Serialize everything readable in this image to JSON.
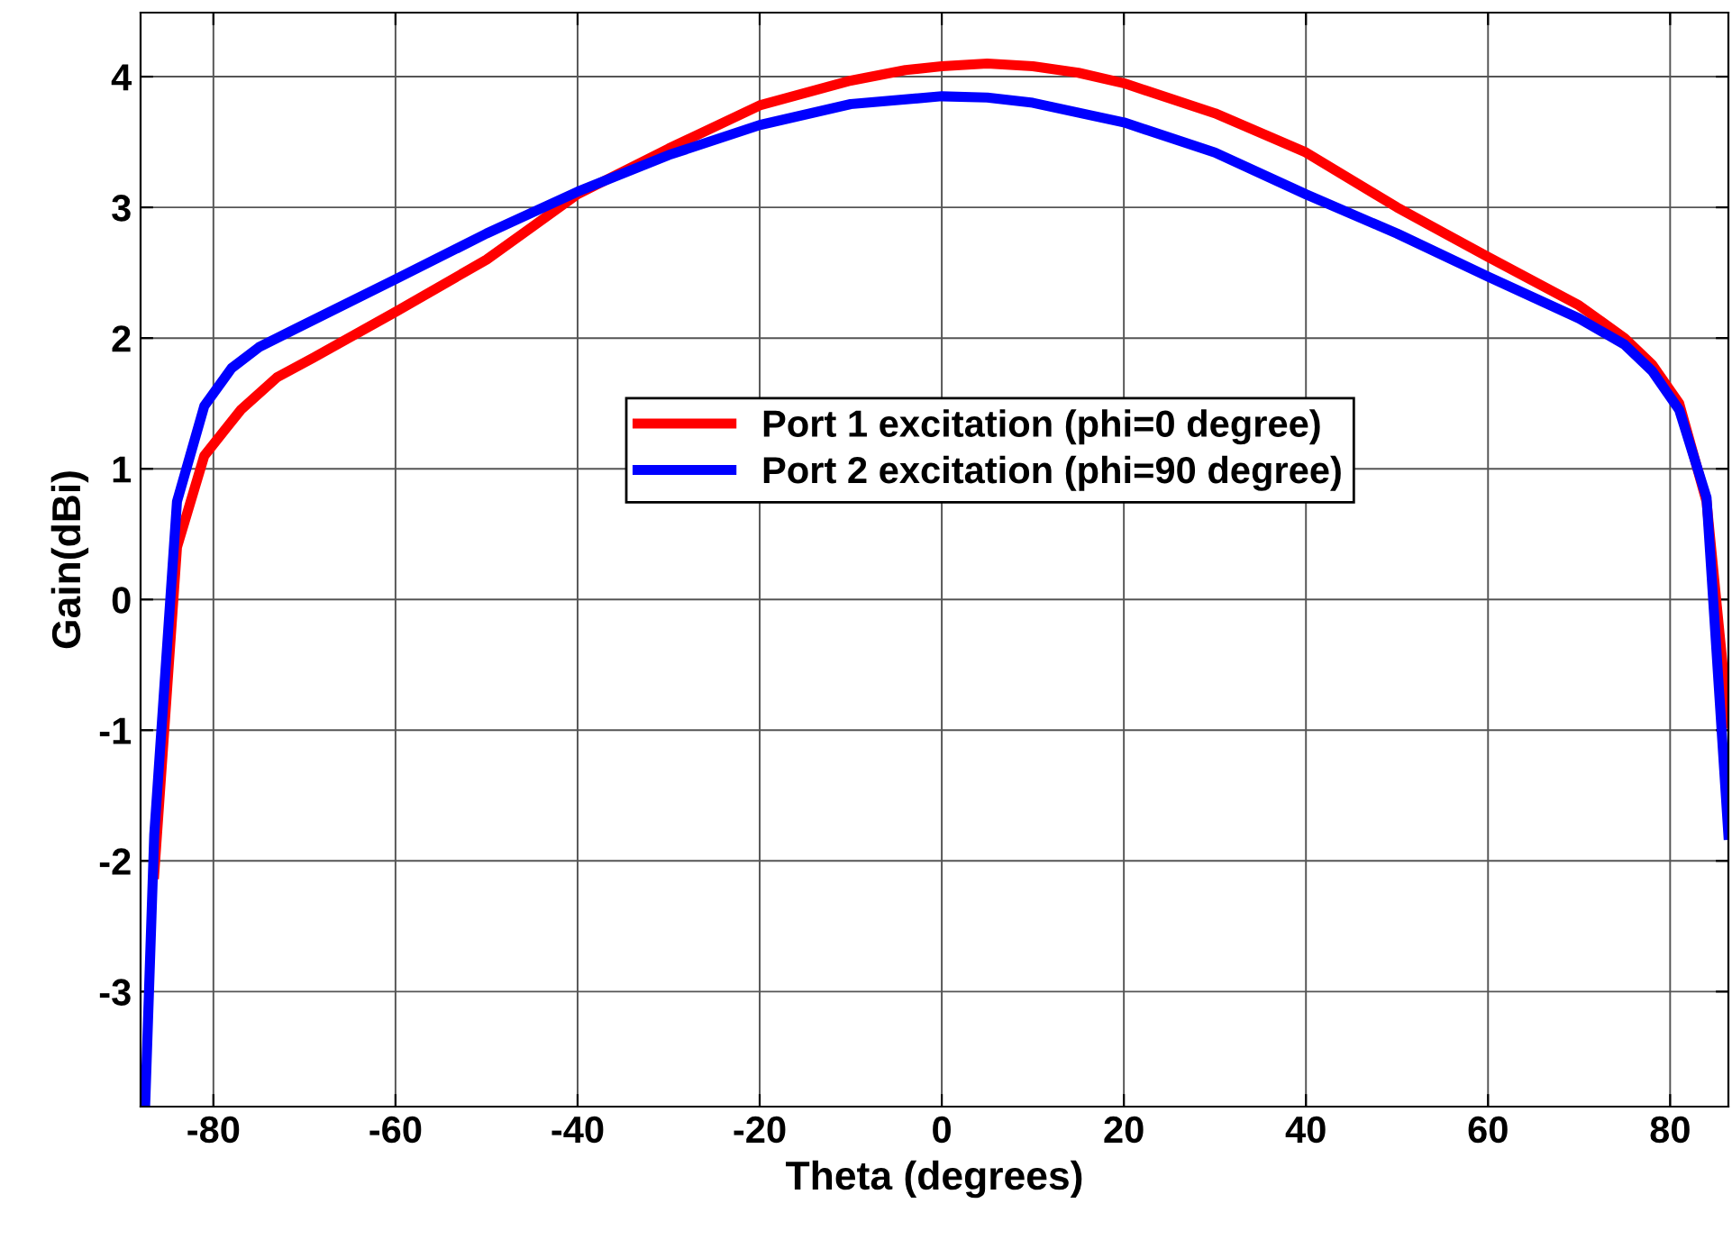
{
  "chart_data": {
    "type": "line",
    "xlabel": "Theta (degrees)",
    "ylabel": "Gain(dBi)",
    "xlim": [
      -88,
      86.4
    ],
    "ylim": [
      -3.88,
      4.49
    ],
    "xticks": [
      -80,
      -60,
      -40,
      -20,
      0,
      20,
      40,
      60,
      80
    ],
    "yticks": [
      -3,
      -2,
      -1,
      0,
      1,
      2,
      3,
      4
    ],
    "grid": true,
    "legend": "center",
    "line_style": "solid",
    "marker": "none",
    "series": [
      {
        "name": "Port 1 excitation (phi=0 degree)",
        "color": "#ff0000",
        "x": [
          -86.5,
          -84,
          -81,
          -77,
          -73,
          -69,
          -60,
          -50,
          -40,
          -30,
          -20,
          -10,
          -4,
          0,
          5,
          10,
          15,
          20,
          30,
          40,
          50,
          60,
          70,
          75,
          78,
          81,
          84,
          86.4
        ],
        "values": [
          -2.1,
          0.4,
          1.1,
          1.45,
          1.7,
          1.85,
          2.2,
          2.6,
          3.1,
          3.45,
          3.78,
          3.97,
          4.05,
          4.08,
          4.1,
          4.08,
          4.03,
          3.95,
          3.72,
          3.42,
          3.0,
          2.62,
          2.25,
          2.0,
          1.8,
          1.5,
          0.75,
          -0.95
        ]
      },
      {
        "name": "Port 2 excitation (phi=90 degree)",
        "color": "#0000ff",
        "x": [
          -87.5,
          -86.5,
          -84,
          -81,
          -78,
          -75,
          -71,
          -60,
          -50,
          -40,
          -30,
          -20,
          -10,
          0,
          5,
          10,
          20,
          30,
          40,
          50,
          60,
          70,
          75,
          78,
          81,
          84,
          86.4
        ],
        "values": [
          -3.88,
          -1.8,
          0.75,
          1.48,
          1.77,
          1.93,
          2.07,
          2.45,
          2.8,
          3.12,
          3.4,
          3.63,
          3.79,
          3.85,
          3.84,
          3.8,
          3.65,
          3.42,
          3.1,
          2.8,
          2.47,
          2.15,
          1.95,
          1.75,
          1.45,
          0.78,
          -1.8
        ]
      }
    ]
  }
}
